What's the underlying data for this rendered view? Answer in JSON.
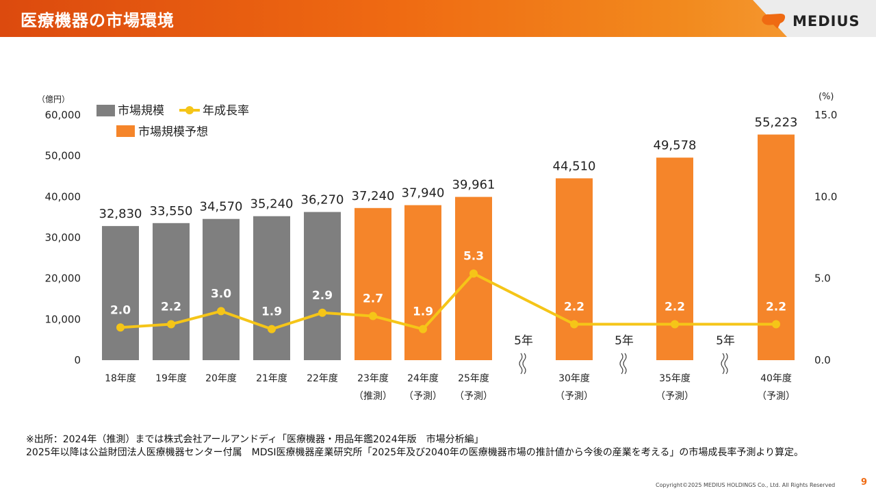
{
  "header": {
    "title": "医療機器の市場環境",
    "logo_text": "MEDIUS",
    "logo_icon": "medius-logo-icon"
  },
  "colors": {
    "bar_actual": "#7f7f7f",
    "bar_forecast": "#f5852a",
    "line": "#f5c518",
    "accent": "#ef6a12"
  },
  "chart_data": {
    "type": "bar",
    "categories": [
      [
        "18年度",
        ""
      ],
      [
        "19年度",
        ""
      ],
      [
        "20年度",
        ""
      ],
      [
        "21年度",
        ""
      ],
      [
        "22年度",
        ""
      ],
      [
        "23年度",
        "（推測）"
      ],
      [
        "24年度",
        "（予測）"
      ],
      [
        "25年度",
        "（予測）"
      ],
      [
        "30年度",
        "（予測）"
      ],
      [
        "35年度",
        "（予測）"
      ],
      [
        "40年度",
        "（予測）"
      ]
    ],
    "series": [
      {
        "name": "市場規模",
        "axis": "left",
        "values": [
          32830,
          33550,
          34570,
          35240,
          36270,
          null,
          null,
          null,
          null,
          null,
          null
        ],
        "labels": [
          "32,830",
          "33,550",
          "34,570",
          "35,240",
          "36,270",
          "",
          "",
          "",
          "",
          "",
          ""
        ]
      },
      {
        "name": "市場規模予想",
        "axis": "left",
        "values": [
          null,
          null,
          null,
          null,
          null,
          37240,
          37940,
          39961,
          44510,
          49578,
          55223
        ],
        "labels": [
          "",
          "",
          "",
          "",
          "",
          "37,240",
          "37,940",
          "39,961",
          "44,510",
          "49,578",
          "55,223"
        ]
      },
      {
        "name": "年成長率",
        "type": "line",
        "axis": "right",
        "values": [
          2.0,
          2.2,
          3.0,
          1.9,
          2.9,
          2.7,
          1.9,
          5.3,
          2.2,
          2.2,
          2.2
        ],
        "labels": [
          "2.0",
          "2.2",
          "3.0",
          "1.9",
          "2.9",
          "2.7",
          "1.9",
          "5.3",
          "2.2",
          "2.2",
          "2.2"
        ]
      }
    ],
    "y_left": {
      "unit": "（億円）",
      "range": [
        0,
        60000
      ],
      "ticks": [
        "0",
        "10,000",
        "20,000",
        "30,000",
        "40,000",
        "50,000",
        "60,000"
      ]
    },
    "y_right": {
      "unit": "(%)",
      "range": [
        0,
        15
      ],
      "ticks": [
        "0.0",
        "5.0",
        "10.0",
        "15.0"
      ]
    },
    "gap_label": "5年",
    "gaps_after_index": [
      7,
      8,
      9
    ],
    "grid": false,
    "legend_position": "top-left"
  },
  "footnote": {
    "line1": "※出所：2024年（推測）までは株式会社アールアンドディ「医療機器・用品年鑑2024年版　市場分析編」",
    "line2": "2025年以降は公益財団法人医療機器センター付属　MDSI医療機器産業研究所「2025年及び2040年の医療機器市場の推計値から今後の産業を考える」の市場成長率予測より算定。"
  },
  "copyright": "Copyright©2025 MEDIUS HOLDINGS Co., Ltd. All Rights Reserved",
  "page_number": "9"
}
